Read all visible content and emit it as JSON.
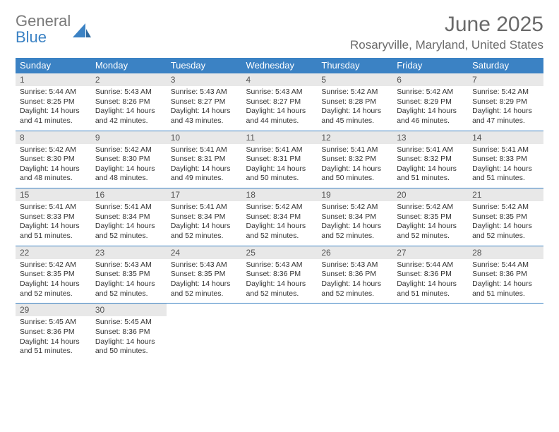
{
  "logo": {
    "line1": "General",
    "line2": "Blue"
  },
  "title": "June 2025",
  "location": "Rosaryville, Maryland, United States",
  "colors": {
    "header_bg": "#3b82c4",
    "header_fg": "#ffffff",
    "daynum_bg": "#e8e8e8",
    "rule": "#3b82c4",
    "text": "#333333",
    "muted": "#6a6a6a"
  },
  "typography": {
    "title_fontsize": 30,
    "location_fontsize": 17,
    "dow_fontsize": 13,
    "daynum_fontsize": 12,
    "body_fontsize": 10.5
  },
  "dow": [
    "Sunday",
    "Monday",
    "Tuesday",
    "Wednesday",
    "Thursday",
    "Friday",
    "Saturday"
  ],
  "layout": {
    "cols": 7,
    "rows": 5
  },
  "days": [
    {
      "n": "1",
      "sunrise": "Sunrise: 5:44 AM",
      "sunset": "Sunset: 8:25 PM",
      "day1": "Daylight: 14 hours",
      "day2": "and 41 minutes."
    },
    {
      "n": "2",
      "sunrise": "Sunrise: 5:43 AM",
      "sunset": "Sunset: 8:26 PM",
      "day1": "Daylight: 14 hours",
      "day2": "and 42 minutes."
    },
    {
      "n": "3",
      "sunrise": "Sunrise: 5:43 AM",
      "sunset": "Sunset: 8:27 PM",
      "day1": "Daylight: 14 hours",
      "day2": "and 43 minutes."
    },
    {
      "n": "4",
      "sunrise": "Sunrise: 5:43 AM",
      "sunset": "Sunset: 8:27 PM",
      "day1": "Daylight: 14 hours",
      "day2": "and 44 minutes."
    },
    {
      "n": "5",
      "sunrise": "Sunrise: 5:42 AM",
      "sunset": "Sunset: 8:28 PM",
      "day1": "Daylight: 14 hours",
      "day2": "and 45 minutes."
    },
    {
      "n": "6",
      "sunrise": "Sunrise: 5:42 AM",
      "sunset": "Sunset: 8:29 PM",
      "day1": "Daylight: 14 hours",
      "day2": "and 46 minutes."
    },
    {
      "n": "7",
      "sunrise": "Sunrise: 5:42 AM",
      "sunset": "Sunset: 8:29 PM",
      "day1": "Daylight: 14 hours",
      "day2": "and 47 minutes."
    },
    {
      "n": "8",
      "sunrise": "Sunrise: 5:42 AM",
      "sunset": "Sunset: 8:30 PM",
      "day1": "Daylight: 14 hours",
      "day2": "and 48 minutes."
    },
    {
      "n": "9",
      "sunrise": "Sunrise: 5:42 AM",
      "sunset": "Sunset: 8:30 PM",
      "day1": "Daylight: 14 hours",
      "day2": "and 48 minutes."
    },
    {
      "n": "10",
      "sunrise": "Sunrise: 5:41 AM",
      "sunset": "Sunset: 8:31 PM",
      "day1": "Daylight: 14 hours",
      "day2": "and 49 minutes."
    },
    {
      "n": "11",
      "sunrise": "Sunrise: 5:41 AM",
      "sunset": "Sunset: 8:31 PM",
      "day1": "Daylight: 14 hours",
      "day2": "and 50 minutes."
    },
    {
      "n": "12",
      "sunrise": "Sunrise: 5:41 AM",
      "sunset": "Sunset: 8:32 PM",
      "day1": "Daylight: 14 hours",
      "day2": "and 50 minutes."
    },
    {
      "n": "13",
      "sunrise": "Sunrise: 5:41 AM",
      "sunset": "Sunset: 8:32 PM",
      "day1": "Daylight: 14 hours",
      "day2": "and 51 minutes."
    },
    {
      "n": "14",
      "sunrise": "Sunrise: 5:41 AM",
      "sunset": "Sunset: 8:33 PM",
      "day1": "Daylight: 14 hours",
      "day2": "and 51 minutes."
    },
    {
      "n": "15",
      "sunrise": "Sunrise: 5:41 AM",
      "sunset": "Sunset: 8:33 PM",
      "day1": "Daylight: 14 hours",
      "day2": "and 51 minutes."
    },
    {
      "n": "16",
      "sunrise": "Sunrise: 5:41 AM",
      "sunset": "Sunset: 8:34 PM",
      "day1": "Daylight: 14 hours",
      "day2": "and 52 minutes."
    },
    {
      "n": "17",
      "sunrise": "Sunrise: 5:41 AM",
      "sunset": "Sunset: 8:34 PM",
      "day1": "Daylight: 14 hours",
      "day2": "and 52 minutes."
    },
    {
      "n": "18",
      "sunrise": "Sunrise: 5:42 AM",
      "sunset": "Sunset: 8:34 PM",
      "day1": "Daylight: 14 hours",
      "day2": "and 52 minutes."
    },
    {
      "n": "19",
      "sunrise": "Sunrise: 5:42 AM",
      "sunset": "Sunset: 8:34 PM",
      "day1": "Daylight: 14 hours",
      "day2": "and 52 minutes."
    },
    {
      "n": "20",
      "sunrise": "Sunrise: 5:42 AM",
      "sunset": "Sunset: 8:35 PM",
      "day1": "Daylight: 14 hours",
      "day2": "and 52 minutes."
    },
    {
      "n": "21",
      "sunrise": "Sunrise: 5:42 AM",
      "sunset": "Sunset: 8:35 PM",
      "day1": "Daylight: 14 hours",
      "day2": "and 52 minutes."
    },
    {
      "n": "22",
      "sunrise": "Sunrise: 5:42 AM",
      "sunset": "Sunset: 8:35 PM",
      "day1": "Daylight: 14 hours",
      "day2": "and 52 minutes."
    },
    {
      "n": "23",
      "sunrise": "Sunrise: 5:43 AM",
      "sunset": "Sunset: 8:35 PM",
      "day1": "Daylight: 14 hours",
      "day2": "and 52 minutes."
    },
    {
      "n": "24",
      "sunrise": "Sunrise: 5:43 AM",
      "sunset": "Sunset: 8:35 PM",
      "day1": "Daylight: 14 hours",
      "day2": "and 52 minutes."
    },
    {
      "n": "25",
      "sunrise": "Sunrise: 5:43 AM",
      "sunset": "Sunset: 8:36 PM",
      "day1": "Daylight: 14 hours",
      "day2": "and 52 minutes."
    },
    {
      "n": "26",
      "sunrise": "Sunrise: 5:43 AM",
      "sunset": "Sunset: 8:36 PM",
      "day1": "Daylight: 14 hours",
      "day2": "and 52 minutes."
    },
    {
      "n": "27",
      "sunrise": "Sunrise: 5:44 AM",
      "sunset": "Sunset: 8:36 PM",
      "day1": "Daylight: 14 hours",
      "day2": "and 51 minutes."
    },
    {
      "n": "28",
      "sunrise": "Sunrise: 5:44 AM",
      "sunset": "Sunset: 8:36 PM",
      "day1": "Daylight: 14 hours",
      "day2": "and 51 minutes."
    },
    {
      "n": "29",
      "sunrise": "Sunrise: 5:45 AM",
      "sunset": "Sunset: 8:36 PM",
      "day1": "Daylight: 14 hours",
      "day2": "and 51 minutes."
    },
    {
      "n": "30",
      "sunrise": "Sunrise: 5:45 AM",
      "sunset": "Sunset: 8:36 PM",
      "day1": "Daylight: 14 hours",
      "day2": "and 50 minutes."
    }
  ]
}
